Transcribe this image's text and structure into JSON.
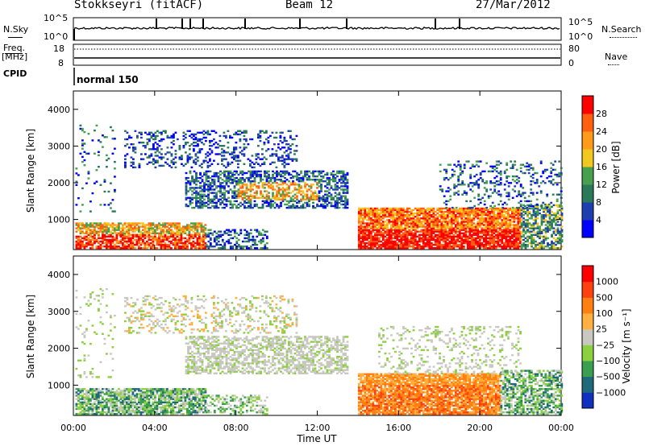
{
  "header": {
    "title": "Stokkseyri (fitACF)",
    "beam": "Beam 12",
    "date": "27/Mar/2012"
  },
  "top_panels": {
    "nsky_label": "N.Sky",
    "nsearch_label": "N.Search",
    "nsky_ticks": [
      "10^5",
      "10^0"
    ],
    "nsky_right_ticks": [
      "10^5",
      "10^0"
    ],
    "freq_label": "Freq.",
    "freq_unit": "[MHz]",
    "freq_ticks": [
      "18",
      "8"
    ],
    "nave_label": "Nave",
    "nave_ticks": [
      "80",
      "0"
    ],
    "cpid_label": "CPID",
    "cpid_value": "normal 150"
  },
  "chart_data": [
    {
      "type": "heatmap",
      "name": "power",
      "ylabel": "Slant Range [km]",
      "xlabel": "Time UT",
      "xticks": [
        "00:00",
        "04:00",
        "08:00",
        "12:00",
        "16:00",
        "20:00",
        "00:00"
      ],
      "yticks": [
        1000,
        2000,
        3000,
        4000
      ],
      "ylim": [
        180,
        4500
      ],
      "xlim_hours": [
        0,
        24
      ],
      "colorbar": {
        "label": "Power [dB]",
        "ticks": [
          "4",
          "8",
          "12",
          "16",
          "20",
          "24",
          "28"
        ],
        "colors": [
          "#0000ff",
          "#1f3fb0",
          "#2a7a5a",
          "#46a050",
          "#f0c820",
          "#ff9a1a",
          "#ff6010",
          "#ff0000"
        ]
      }
    },
    {
      "type": "heatmap",
      "name": "velocity",
      "ylabel": "Slant Range [km]",
      "xlabel": "Time UT",
      "xticks": [
        "00:00",
        "04:00",
        "08:00",
        "12:00",
        "16:00",
        "20:00",
        "00:00"
      ],
      "yticks": [
        1000,
        2000,
        3000,
        4000
      ],
      "ylim": [
        180,
        4500
      ],
      "xlim_hours": [
        0,
        24
      ],
      "colorbar": {
        "label": "Velocity [m s⁻¹]",
        "ticks": [
          "1000",
          "500",
          "100",
          "25",
          "−25",
          "−100",
          "−500",
          "−1000"
        ],
        "colors": [
          "#1030c0",
          "#1f6a7a",
          "#3aa050",
          "#8cd040",
          "#c8c8c0",
          "#ffb040",
          "#ff8010",
          "#ff4010",
          "#ff0000"
        ]
      }
    }
  ]
}
